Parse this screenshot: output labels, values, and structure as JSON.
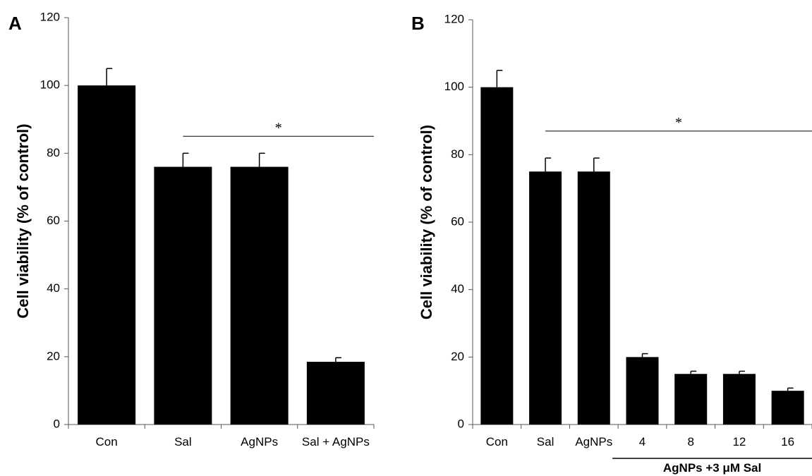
{
  "chart_data": [
    {
      "type": "bar",
      "panel_label": "A",
      "ylabel": "Cell viability (% of control)",
      "xlabel": "",
      "ylim": [
        0,
        120
      ],
      "yticks": [
        0,
        20,
        40,
        60,
        80,
        100,
        120
      ],
      "categories": [
        "Con",
        "Sal",
        "AgNPs",
        "Sal + AgNPs"
      ],
      "values": [
        100,
        76,
        76,
        18.5
      ],
      "errors": [
        5,
        4,
        4,
        1.2
      ],
      "bar_color": "#000000",
      "annotation": {
        "text": "*",
        "from_category": 1,
        "to_category": 3,
        "y": 85
      }
    },
    {
      "type": "bar",
      "panel_label": "B",
      "ylabel": "Cell viability (% of control)",
      "xlabel": "",
      "ylim": [
        0,
        120
      ],
      "yticks": [
        0,
        20,
        40,
        60,
        80,
        100,
        120
      ],
      "categories": [
        "Con",
        "Sal",
        "AgNPs",
        "4",
        "8",
        "12",
        "16"
      ],
      "values": [
        100,
        75,
        75,
        20,
        15,
        15,
        10
      ],
      "errors": [
        5,
        4,
        4,
        1,
        0.8,
        0.8,
        0.8
      ],
      "bar_color": "#000000",
      "annotation": {
        "text": "*",
        "from_category": 1,
        "to_category": 6,
        "y": 87
      },
      "group_label": {
        "text": "AgNPs +3 μM Sal",
        "from_category": 3,
        "to_category": 6
      }
    }
  ]
}
